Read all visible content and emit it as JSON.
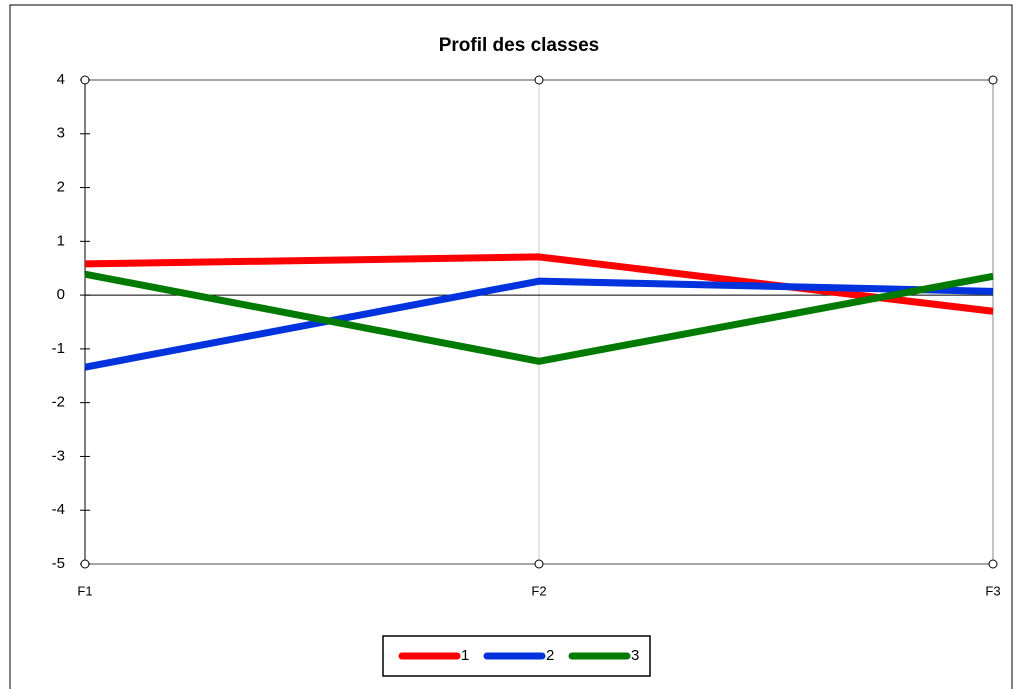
{
  "chart_data": {
    "type": "line",
    "title": "Profil des classes",
    "categories": [
      "F1",
      "F2",
      "F3"
    ],
    "series": [
      {
        "name": "1",
        "color": "#ff0000",
        "values": [
          0.58,
          0.71,
          -0.3
        ]
      },
      {
        "name": "2",
        "color": "#0033dd",
        "values": [
          -1.34,
          0.26,
          0.07
        ]
      },
      {
        "name": "3",
        "color": "#007a00",
        "values": [
          0.39,
          -1.23,
          0.35
        ]
      }
    ],
    "ylim": [
      -5,
      4
    ],
    "yticks": [
      -5,
      -4,
      -3,
      -2,
      -1,
      0,
      1,
      2,
      3,
      4
    ],
    "legend": "bottom"
  }
}
